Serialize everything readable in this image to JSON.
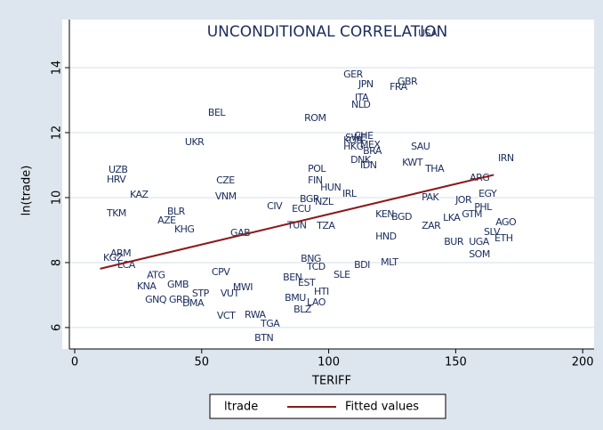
{
  "chart_data": {
    "type": "scatter",
    "title": "UNCONDITIONAL CORRELATION",
    "x_label": "TERIFF",
    "y_label": "ln(trade)",
    "xlim": [
      -2.1,
      204.5
    ],
    "ylim": [
      5.34,
      15.48
    ],
    "xticks": [
      0,
      50,
      100,
      150,
      200
    ],
    "yticks": [
      6,
      8,
      10,
      12,
      14
    ],
    "grid": true,
    "legend": "bottom",
    "series": [
      {
        "name": "ltrade",
        "color": "#1a2c5b",
        "labels": [
          "USA",
          "GER",
          "JPN",
          "GBR",
          "FRA",
          "ITA",
          "NLD",
          "BEL",
          "ROM",
          "CHE",
          "SWE",
          "KOR",
          "HKG",
          "MEX",
          "SAU",
          "BRA",
          "UKR",
          "IRN",
          "DNK",
          "IDN",
          "KWT",
          "THA",
          "UZB",
          "HRV",
          "CZE",
          "POL",
          "FIN",
          "HUN",
          "ARG",
          "KAZ",
          "VNM",
          "IRL",
          "PAK",
          "JOR",
          "EGY",
          "PHL",
          "CIV",
          "BGR",
          "ECU",
          "NZL",
          "TKM",
          "BLR",
          "AZE",
          "KHG",
          "LKA",
          "GTM",
          "AGO",
          "SLV",
          "UGA",
          "ETH",
          "TUN",
          "TZA",
          "KEN",
          "BGD",
          "HND",
          "ZAR",
          "GAB",
          "BUR",
          "SOM",
          "MLT",
          "ARM",
          "KGZ",
          "LCA",
          "TCD",
          "SLE",
          "BDI",
          "CPV",
          "BNG",
          "ATG",
          "GMB",
          "KNA",
          "GNQ",
          "GRD",
          "DMA",
          "STP",
          "BEN",
          "EST",
          "MWI",
          "VUT",
          "HTI",
          "BMU",
          "LAO",
          "BLZ",
          "VCT",
          "RWA",
          "TGA",
          "BTN"
        ],
        "x": [
          135.2,
          105.8,
          111.7,
          127.1,
          124.0,
          110.3,
          108.9,
          52.5,
          90.4,
          110.0,
          106.5,
          105.8,
          105.8,
          112.4,
          132.4,
          113.5,
          43.4,
          166.7,
          108.6,
          112.4,
          128.9,
          138.0,
          13.3,
          12.6,
          55.7,
          91.8,
          91.8,
          96.7,
          155.5,
          21.7,
          55.3,
          105.4,
          136.6,
          149.9,
          159.0,
          157.3,
          75.7,
          88.6,
          85.5,
          94.6,
          12.6,
          36.4,
          32.6,
          39.2,
          145.0,
          152.4,
          165.7,
          161.1,
          155.2,
          165.3,
          83.7,
          95.3,
          118.4,
          124.7,
          118.4,
          136.6,
          61.3,
          145.4,
          155.2,
          120.5,
          14.0,
          11.2,
          16.8,
          91.4,
          101.9,
          110.0,
          53.9,
          89.0,
          28.4,
          36.4,
          24.5,
          27.7,
          37.1,
          42.4,
          46.2,
          82.0,
          87.9,
          62.3,
          57.4,
          94.2,
          82.7,
          91.4,
          86.2,
          56.0,
          66.9,
          73.2,
          70.8
        ],
        "values": [
          15.04,
          13.78,
          13.48,
          13.56,
          13.4,
          13.07,
          12.85,
          12.6,
          12.44,
          11.89,
          11.84,
          11.75,
          11.56,
          11.62,
          11.56,
          11.42,
          11.7,
          11.21,
          11.15,
          10.99,
          11.07,
          10.88,
          10.85,
          10.55,
          10.52,
          10.88,
          10.52,
          10.3,
          10.6,
          10.08,
          10.03,
          10.11,
          10.0,
          9.92,
          10.11,
          9.7,
          9.73,
          9.95,
          9.64,
          9.86,
          9.51,
          9.56,
          9.29,
          9.01,
          9.37,
          9.48,
          9.23,
          8.93,
          8.63,
          8.74,
          9.14,
          9.12,
          9.48,
          9.4,
          8.79,
          9.12,
          8.9,
          8.63,
          8.25,
          8.0,
          8.27,
          8.14,
          7.92,
          7.86,
          7.62,
          7.92,
          7.7,
          8.11,
          7.6,
          7.32,
          7.26,
          6.85,
          6.85,
          6.74,
          7.04,
          7.53,
          7.37,
          7.23,
          7.04,
          7.1,
          6.9,
          6.77,
          6.55,
          6.36,
          6.38,
          6.11,
          5.67
        ]
      },
      {
        "name": "Fitted values",
        "color": "#8b1a1a",
        "x": [
          10,
          165
        ],
        "values": [
          7.81,
          10.7
        ]
      }
    ]
  }
}
